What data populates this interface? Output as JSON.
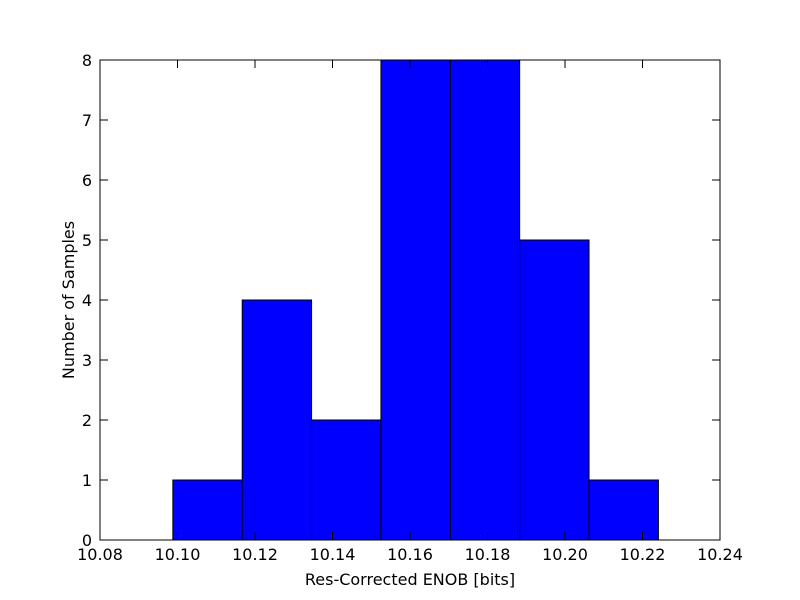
{
  "chart_data": {
    "type": "histogram",
    "xlabel": "Res-Corrected ENOB [bits]",
    "ylabel": "Number of Samples",
    "bins": [
      10.0988,
      10.1167,
      10.1346,
      10.1525,
      10.1704,
      10.1883,
      10.2062,
      10.2241
    ],
    "counts": [
      1,
      4,
      2,
      8,
      8,
      5,
      1
    ],
    "color": "#0000ff",
    "xlim": [
      10.08,
      10.24
    ],
    "xticks": [
      10.08,
      {
        "value": 10.1,
        "label": "10.10"
      },
      10.12,
      10.14,
      10.16,
      10.18,
      {
        "value": 10.2,
        "label": "10.20"
      },
      10.22,
      10.24
    ],
    "ylim": [
      0,
      8
    ],
    "yticks": [
      0,
      1,
      2,
      3,
      4,
      5,
      6,
      7,
      8
    ]
  }
}
